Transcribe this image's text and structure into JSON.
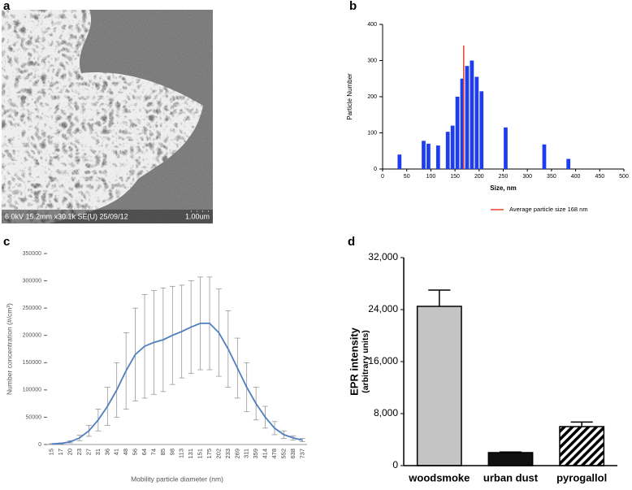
{
  "chart_data": [
    {
      "type": "image",
      "label": "a",
      "scale_text": "6.0kV 15.2mm x30.1k SE(U) 25/09/12",
      "scale_bar": "1.00um"
    },
    {
      "type": "histogram",
      "label": "b",
      "ylabel": "Particle Number",
      "xlabel": "Size, nm",
      "bins": [
        30,
        40,
        50,
        60,
        70,
        80,
        90,
        100,
        110,
        120,
        130,
        140,
        150,
        160,
        170,
        180,
        190,
        200,
        210,
        220,
        230,
        240,
        250,
        260,
        270,
        280,
        290,
        300,
        310,
        320,
        330,
        340,
        350,
        360,
        370,
        380,
        390,
        400
      ],
      "counts": [
        40,
        0,
        0,
        0,
        0,
        78,
        70,
        0,
        65,
        0,
        103,
        120,
        200,
        250,
        285,
        300,
        255,
        215,
        0,
        0,
        0,
        0,
        115,
        0,
        0,
        0,
        0,
        0,
        0,
        0,
        68,
        0,
        0,
        0,
        0,
        28,
        0
      ],
      "color": "#1f3df0",
      "reference_line": {
        "value": 168,
        "label": "Average particle size 168 nm",
        "color": "#e8412c"
      },
      "xlim": [
        0,
        500
      ],
      "xticks": [
        0,
        50,
        100,
        150,
        200,
        250,
        300,
        350,
        400,
        450,
        500
      ],
      "ylim": [
        0,
        400
      ],
      "yticks": [
        0,
        100,
        200,
        300,
        400
      ]
    },
    {
      "type": "line",
      "label": "c",
      "ylabel": "Number concentration (#/cm³)",
      "xlabel": "Mobility particle diameter (nm)",
      "categories": [
        "15",
        "17",
        "20",
        "23",
        "27",
        "31",
        "36",
        "41",
        "48",
        "56",
        "64",
        "74",
        "85",
        "98",
        "113",
        "131",
        "151",
        "175",
        "202",
        "233",
        "269",
        "311",
        "359",
        "414",
        "478",
        "552",
        "638",
        "737"
      ],
      "series": [
        {
          "color": "#4f7fc0",
          "error_color": "#8a8a8a",
          "values": [
            1000,
            2000,
            5000,
            12000,
            25000,
            45000,
            70000,
            100000,
            135000,
            165000,
            180000,
            187000,
            192000,
            200000,
            207000,
            215000,
            222000,
            222000,
            205000,
            175000,
            140000,
            105000,
            75000,
            50000,
            30000,
            18000,
            12000,
            8000
          ],
          "errors": [
            500,
            1000,
            2000,
            5000,
            10000,
            20000,
            35000,
            50000,
            70000,
            85000,
            95000,
            95000,
            95000,
            90000,
            85000,
            85000,
            85000,
            85000,
            80000,
            70000,
            55000,
            45000,
            30000,
            20000,
            12000,
            7000,
            4000,
            3000
          ]
        }
      ],
      "ylim": [
        0,
        350000
      ],
      "yticks": [
        0,
        50000,
        100000,
        150000,
        200000,
        250000,
        300000,
        350000
      ]
    },
    {
      "type": "bar",
      "label": "d",
      "ylabel": "EPR intensity",
      "ylabel_note": "(arbitrary units)",
      "categories": [
        "woodsmoke",
        "urban dust",
        "pyrogallol"
      ],
      "values": [
        24500,
        2000,
        6000
      ],
      "errors": [
        2500,
        100,
        700
      ],
      "colors": [
        "#c4c4c4",
        "#111111",
        "#ffffff"
      ],
      "hatch": [
        false,
        false,
        true
      ],
      "ylim": [
        0,
        32000
      ],
      "yticks": [
        0,
        {
          "value": 8000,
          "label": "8,000"
        },
        {
          "value": 16000,
          "label": "16,000"
        },
        {
          "value": 24000,
          "label": "24,000"
        },
        {
          "value": 32000,
          "label": "32,000"
        }
      ]
    }
  ]
}
